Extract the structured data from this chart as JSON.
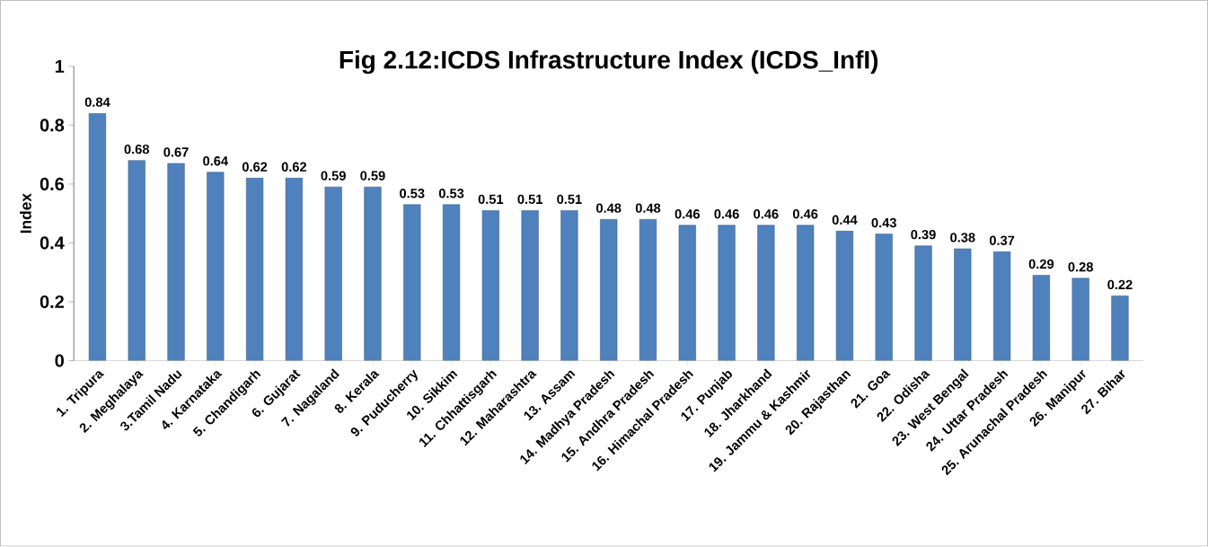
{
  "chart_data": {
    "type": "bar",
    "title": "Fig 2.12:ICDS Infrastructure Index (ICDS_InfI)",
    "ylabel": "Index",
    "categories": [
      "1. Tripura",
      "2. Meghalaya",
      "3.Tamil Nadu",
      "4. Karnataka",
      "5. Chandigarh",
      "6. Gujarat",
      "7. Nagaland",
      "8. Kerala",
      "9. Puducherry",
      "10. Sikkim",
      "11. Chhattisgarh",
      "12. Maharashtra",
      "13. Assam",
      "14. Madhya Pradesh",
      "15. Andhra Pradesh",
      "16. Himachal Pradesh",
      "17. Punjab",
      "18. Jharkhand",
      "19. Jammu & Kashmir",
      "20. Rajasthan",
      "21. Goa",
      "22. Odisha",
      "23. West Bengal",
      "24. Uttar Pradesh",
      "25. Arunachal Pradesh",
      "26. Manipur",
      "27. Bihar"
    ],
    "values": [
      0.84,
      0.68,
      0.67,
      0.64,
      0.62,
      0.62,
      0.59,
      0.59,
      0.53,
      0.53,
      0.51,
      0.51,
      0.51,
      0.48,
      0.48,
      0.46,
      0.46,
      0.46,
      0.46,
      0.44,
      0.43,
      0.39,
      0.38,
      0.37,
      0.29,
      0.28,
      0.22
    ],
    "color": "#4f81bd",
    "ylim": [
      0,
      1
    ],
    "yticks": [
      0,
      0.2,
      0.4,
      0.6,
      0.8,
      1
    ],
    "data_labels": true
  }
}
